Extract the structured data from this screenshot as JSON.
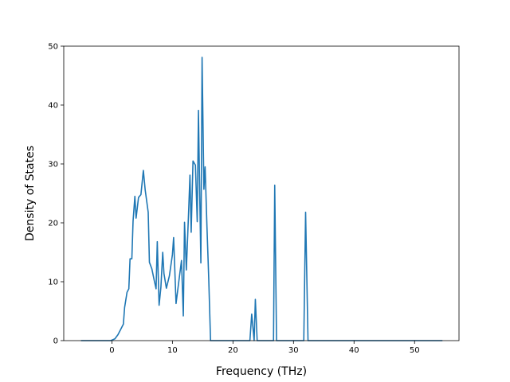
{
  "chart_data": {
    "type": "line",
    "title": "",
    "xlabel": "Frequency (THz)",
    "ylabel": "Density of States",
    "xlim": [
      -7.95,
      57.34
    ],
    "ylim": [
      0,
      50
    ],
    "xticks": [
      0,
      10,
      20,
      30,
      40,
      50
    ],
    "yticks": [
      0,
      10,
      20,
      30,
      40,
      50
    ],
    "grid": false,
    "series": [
      {
        "color": "#1f77b4",
        "points": [
          [
            -5.0,
            0
          ],
          [
            -0.2,
            0
          ],
          [
            0.5,
            0.3
          ],
          [
            1.0,
            1.0
          ],
          [
            1.5,
            2.0
          ],
          [
            1.9,
            2.8
          ],
          [
            2.1,
            5.6
          ],
          [
            2.5,
            8.2
          ],
          [
            2.8,
            8.8
          ],
          [
            3.0,
            13.9
          ],
          [
            3.3,
            13.9
          ],
          [
            3.5,
            20.3
          ],
          [
            3.8,
            24.5
          ],
          [
            4.0,
            20.8
          ],
          [
            4.4,
            24.3
          ],
          [
            4.8,
            24.8
          ],
          [
            5.2,
            28.9
          ],
          [
            5.5,
            25.6
          ],
          [
            6.0,
            21.8
          ],
          [
            6.2,
            13.3
          ],
          [
            6.6,
            12.2
          ],
          [
            7.0,
            10.2
          ],
          [
            7.3,
            8.8
          ],
          [
            7.5,
            16.8
          ],
          [
            7.8,
            6.0
          ],
          [
            8.1,
            9.1
          ],
          [
            8.4,
            15.0
          ],
          [
            8.6,
            11.4
          ],
          [
            9.0,
            8.9
          ],
          [
            9.5,
            11.0
          ],
          [
            10.0,
            14.6
          ],
          [
            10.2,
            17.5
          ],
          [
            10.6,
            6.3
          ],
          [
            11.1,
            10.4
          ],
          [
            11.5,
            13.6
          ],
          [
            11.8,
            4.2
          ],
          [
            12.0,
            20.1
          ],
          [
            12.3,
            12.0
          ],
          [
            12.7,
            22.5
          ],
          [
            12.9,
            28.1
          ],
          [
            13.1,
            18.4
          ],
          [
            13.4,
            30.5
          ],
          [
            13.8,
            29.8
          ],
          [
            14.1,
            20.2
          ],
          [
            14.3,
            39.1
          ],
          [
            14.5,
            25.6
          ],
          [
            14.7,
            13.2
          ],
          [
            14.9,
            48.1
          ],
          [
            15.2,
            25.7
          ],
          [
            15.4,
            29.5
          ],
          [
            15.7,
            19.5
          ],
          [
            16.0,
            10.5
          ],
          [
            16.3,
            0
          ],
          [
            22.0,
            0
          ],
          [
            22.8,
            0
          ],
          [
            23.1,
            4.5
          ],
          [
            23.5,
            0
          ],
          [
            23.7,
            7.0
          ],
          [
            24.0,
            0
          ],
          [
            26.4,
            0
          ],
          [
            26.7,
            0
          ],
          [
            26.9,
            26.4
          ],
          [
            27.2,
            0
          ],
          [
            31.4,
            0
          ],
          [
            31.7,
            0
          ],
          [
            32.0,
            21.8
          ],
          [
            32.4,
            0
          ],
          [
            54.5,
            0
          ]
        ]
      }
    ]
  }
}
